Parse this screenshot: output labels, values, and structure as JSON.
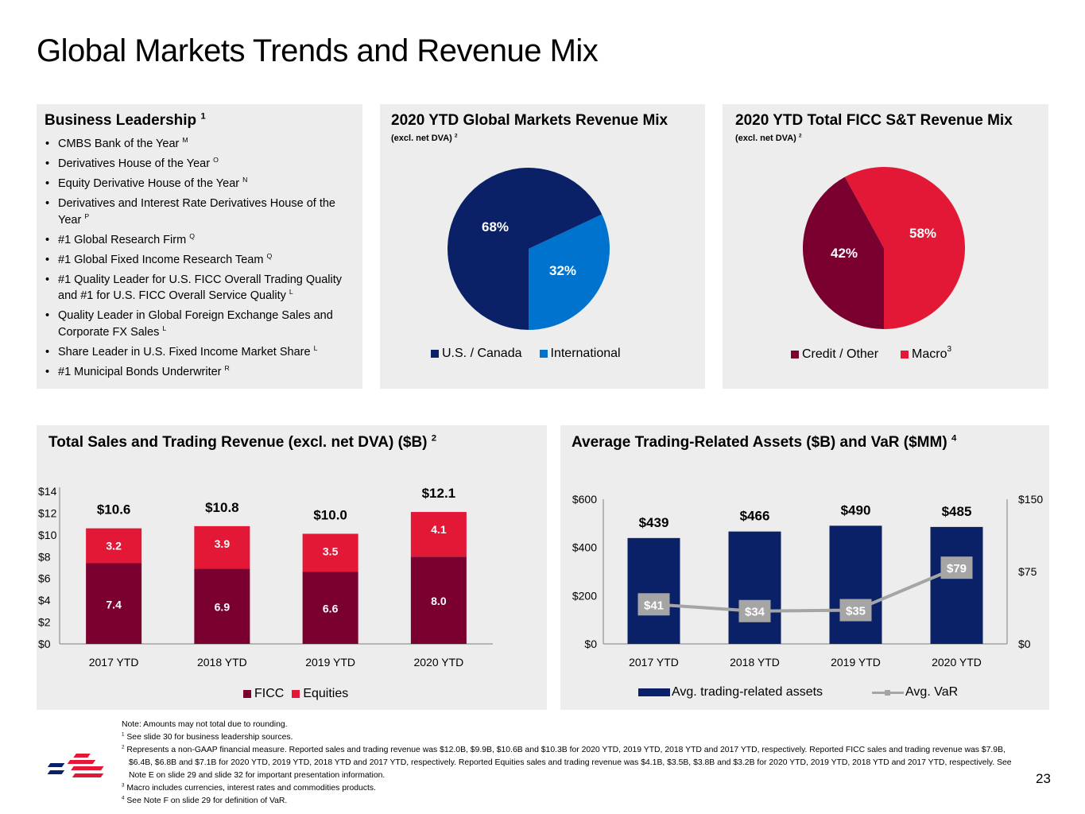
{
  "page": {
    "title": "Global Markets Trends and Revenue Mix",
    "page_number": "23"
  },
  "leadership": {
    "title": "Business Leadership",
    "title_sup": "1",
    "items": [
      {
        "text": "CMBS Bank of the Year",
        "sup": "M"
      },
      {
        "text": "Derivatives House of the Year",
        "sup": "O"
      },
      {
        "text": "Equity Derivative House of the Year",
        "sup": "N"
      },
      {
        "text": "Derivatives and Interest Rate Derivatives House of the Year",
        "sup": "P"
      },
      {
        "text": "#1 Global Research Firm",
        "sup": "Q"
      },
      {
        "text": "#1 Global Fixed Income Research Team",
        "sup": "Q"
      },
      {
        "text": "#1 Quality Leader for U.S. FICC Overall Trading Quality and #1 for U.S. FICC Overall Service Quality",
        "sup": "L"
      },
      {
        "text": "Quality Leader in Global Foreign Exchange Sales and Corporate FX Sales",
        "sup": "L"
      },
      {
        "text": "Share Leader in U.S. Fixed Income Market Share",
        "sup": "L"
      },
      {
        "text": "#1 Municipal Bonds Underwriter",
        "sup": "R"
      }
    ]
  },
  "colors": {
    "navy": "#0a2167",
    "blue": "#0073cf",
    "maroon": "#7a0030",
    "red": "#e31837",
    "gray": "#a5a5a5",
    "panel": "#ededed"
  },
  "chart_data": [
    {
      "id": "gm_mix",
      "type": "pie",
      "title": "2020 YTD Global Markets Revenue Mix",
      "subtitle": "(excl. net DVA)",
      "subtitle_sup": "2",
      "slices": [
        {
          "label": "U.S. / Canada",
          "value": 68,
          "display": "68%",
          "color": "#0a2167"
        },
        {
          "label": "International",
          "value": 32,
          "display": "32%",
          "color": "#0073cf"
        }
      ],
      "legend_position": "bottom"
    },
    {
      "id": "ficc_mix",
      "type": "pie",
      "title": "2020 YTD Total FICC S&T Revenue Mix",
      "subtitle": "(excl. net DVA)",
      "subtitle_sup": "2",
      "slices": [
        {
          "label": "Macro",
          "label_sup": "3",
          "value": 58,
          "display": "58%",
          "color": "#e31837"
        },
        {
          "label": "Credit / Other",
          "value": 42,
          "display": "42%",
          "color": "#7a0030"
        }
      ],
      "legend_order": [
        "Credit / Other",
        "Macro"
      ],
      "legend_position": "bottom"
    },
    {
      "id": "snt_revenue",
      "type": "bar",
      "stacked": true,
      "title": "Total Sales and Trading Revenue (excl. net DVA) ($B)",
      "title_sup": "2",
      "categories": [
        "2017 YTD",
        "2018 YTD",
        "2019 YTD",
        "2020 YTD"
      ],
      "series": [
        {
          "name": "FICC",
          "values": [
            7.4,
            6.9,
            6.6,
            8.0
          ],
          "labels": [
            "7.4",
            "6.9",
            "6.6",
            "8.0"
          ],
          "color": "#7a0030"
        },
        {
          "name": "Equities",
          "values": [
            3.2,
            3.9,
            3.5,
            4.1
          ],
          "labels": [
            "3.2",
            "3.9",
            "3.5",
            "4.1"
          ],
          "color": "#e31837"
        }
      ],
      "totals": [
        10.6,
        10.8,
        10.0,
        12.1
      ],
      "total_labels": [
        "$10.6",
        "$10.8",
        "$10.0",
        "$12.1"
      ],
      "ylim": [
        0,
        14
      ],
      "yticks": [
        "$0",
        "$2",
        "$4",
        "$6",
        "$8",
        "$10",
        "$12",
        "$14"
      ],
      "legend_position": "bottom"
    },
    {
      "id": "assets_var",
      "type": "bar",
      "title": "Average Trading-Related Assets ($B) and VaR ($MM)",
      "title_sup": "4",
      "categories": [
        "2017 YTD",
        "2018 YTD",
        "2019 YTD",
        "2020 YTD"
      ],
      "series": [
        {
          "name": "Avg. trading-related assets",
          "type": "bar",
          "axis": "left",
          "values": [
            439,
            466,
            490,
            485
          ],
          "labels": [
            "$439",
            "$466",
            "$490",
            "$485"
          ],
          "color": "#0a2167"
        },
        {
          "name": "Avg. VaR",
          "type": "line",
          "axis": "right",
          "values": [
            41,
            34,
            35,
            79
          ],
          "labels": [
            "$41",
            "$34",
            "$35",
            "$79"
          ],
          "color": "#a5a5a5"
        }
      ],
      "ylim_left": [
        0,
        600
      ],
      "yticks_left": [
        "$0",
        "$200",
        "$400",
        "$600"
      ],
      "ylim_right": [
        0,
        150
      ],
      "yticks_right": [
        "$0",
        "$75",
        "$150"
      ],
      "legend_position": "bottom"
    }
  ],
  "notes": {
    "note": "Note: Amounts may not total due to rounding.",
    "footnotes": [
      {
        "num": "1",
        "text": "See slide 30 for business leadership sources."
      },
      {
        "num": "2",
        "text": "Represents a non-GAAP financial measure. Reported sales and trading revenue was $12.0B, $9.9B, $10.6B and $10.3B for 2020 YTD, 2019 YTD, 2018 YTD and 2017 YTD, respectively. Reported FICC sales and trading revenue was $7.9B, $6.4B, $6.8B and $7.1B for 2020 YTD, 2019 YTD, 2018 YTD and 2017 YTD, respectively. Reported Equities sales and trading revenue was $4.1B, $3.5B, $3.8B and $3.2B for 2020 YTD, 2019 YTD, 2018 YTD and 2017 YTD, respectively. See Note E on slide 29 and slide 32 for important presentation information."
      },
      {
        "num": "3",
        "text": "Macro includes currencies, interest rates and commodities products."
      },
      {
        "num": "4",
        "text": "See Note F on slide 29 for definition of VaR."
      }
    ]
  }
}
